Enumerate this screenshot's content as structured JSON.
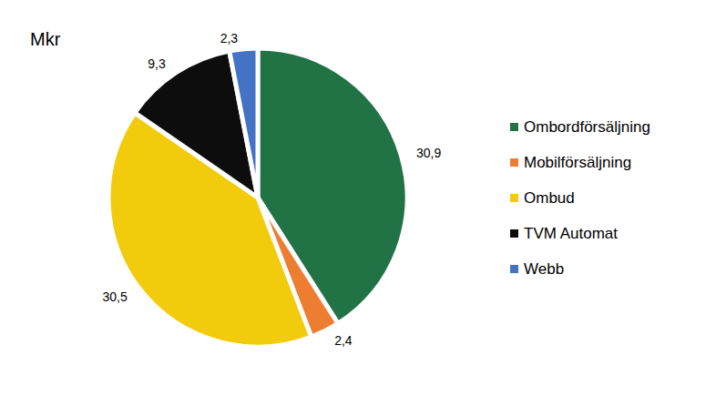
{
  "chart_data": {
    "type": "pie",
    "title": "Mkr",
    "categories": [
      "Ombordförsäljning",
      "Mobilförsäljning",
      "Ombud",
      "TVM Automat",
      "Webb"
    ],
    "values": [
      30.9,
      2.4,
      30.5,
      9.3,
      2.3
    ],
    "value_labels": [
      "30,9",
      "2,4",
      "30,5",
      "9,3",
      "2,3"
    ],
    "colors": [
      "#217346",
      "#ed7d31",
      "#f2cc0c",
      "#0d0d0d",
      "#4472c4"
    ],
    "data_labels": true,
    "legend": "right"
  }
}
